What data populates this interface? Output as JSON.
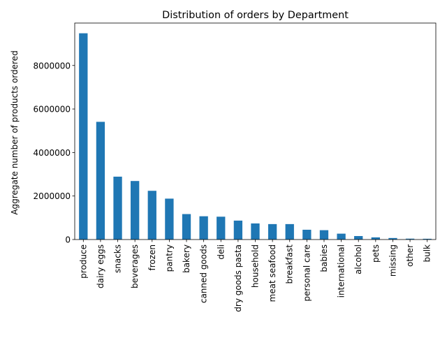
{
  "chart_data": {
    "type": "bar",
    "title": "Distribution of orders by Department",
    "xlabel": "",
    "ylabel": "Aggregate number of products ordered",
    "categories": [
      "produce",
      "dairy eggs",
      "snacks",
      "beverages",
      "frozen",
      "pantry",
      "bakery",
      "canned goods",
      "deli",
      "dry goods pasta",
      "household",
      "meat seafood",
      "breakfast",
      "personal care",
      "babies",
      "international",
      "alcohol",
      "pets",
      "missing",
      "other",
      "bulk"
    ],
    "values": [
      9480000,
      5410000,
      2890000,
      2690000,
      2240000,
      1880000,
      1170000,
      1070000,
      1050000,
      870000,
      740000,
      710000,
      710000,
      450000,
      430000,
      270000,
      160000,
      100000,
      70000,
      40000,
      35000
    ],
    "yticks": [
      0,
      2000000,
      4000000,
      6000000,
      8000000
    ],
    "ytick_labels": [
      "0",
      "2000000",
      "4000000",
      "6000000",
      "8000000"
    ],
    "ylim": [
      0,
      9950000
    ],
    "bar_color": "#1f77b4",
    "grid": false,
    "legend": "none"
  }
}
